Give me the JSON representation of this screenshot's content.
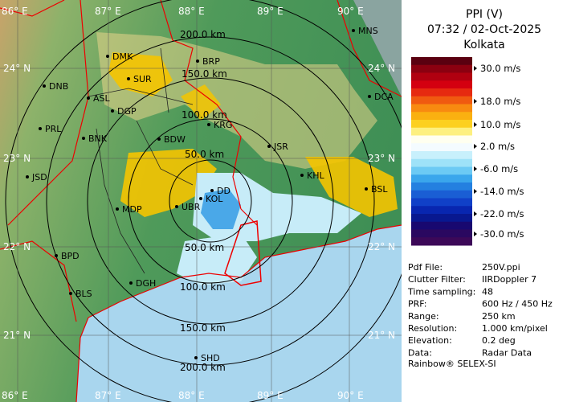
{
  "header": {
    "title": "PPI (V)",
    "datetime": "07:32 / 02-Oct-2025",
    "station": "Kolkata"
  },
  "lon_labels_top": [
    "86° E",
    "87° E",
    "88° E",
    "89° E",
    "90° E"
  ],
  "lon_labels_bottom": [
    "86° E",
    "87° E",
    "88° E",
    "89° E",
    "90° E"
  ],
  "lat_labels_left": [
    "24° N",
    "23° N",
    "22° N",
    "21° N"
  ],
  "lat_labels_right": [
    "24° N",
    "23° N",
    "22° N",
    "21° N"
  ],
  "cities": [
    "MNS",
    "DMK",
    "BRP",
    "SUR",
    "DNB",
    "ASL",
    "DCA",
    "DGP",
    "KRG",
    "PRL",
    "BNK",
    "BDW",
    "JSR",
    "KHL",
    "JSD",
    "BSL",
    "DD",
    "KOL",
    "MDP",
    "UBR",
    "BPD",
    "DGH",
    "BLS",
    "SHD"
  ],
  "ring_labels_top": [
    "200.0 km",
    "150.0 km",
    "100.0 km",
    "50.0 km"
  ],
  "ring_labels_bottom": [
    "50.0 km",
    "100.0 km",
    "150.0 km",
    "200.0 km"
  ],
  "legend": [
    "30.0 m/s",
    "18.0 m/s",
    "10.0 m/s",
    "2.0 m/s",
    "-6.0 m/s",
    "-14.0 m/s",
    "-22.0 m/s",
    "-30.0 m/s"
  ],
  "info": [
    [
      "Pdf File:",
      "250V.ppi"
    ],
    [
      "Clutter Filter:",
      "IIRDoppler 7"
    ],
    [
      "Time sampling:",
      "48"
    ],
    [
      "PRF:",
      "600 Hz / 450 Hz"
    ],
    [
      "Range:",
      "250 km"
    ],
    [
      "Resolution:",
      "1.000 km/pixel"
    ],
    [
      "Elevation:",
      "0.2 deg"
    ],
    [
      "Data:",
      "Radar Data"
    ]
  ],
  "footer": "Rainbow® SELEX-SI"
}
